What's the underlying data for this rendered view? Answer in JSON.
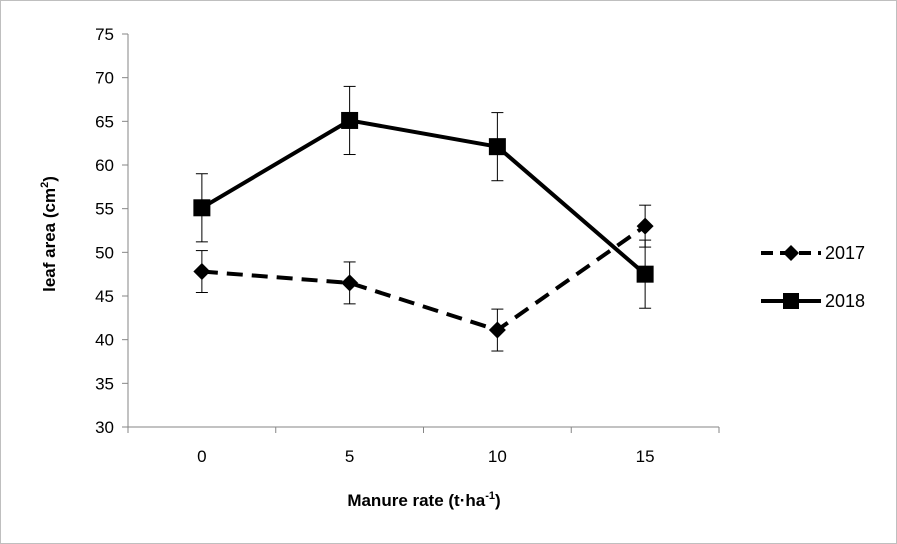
{
  "chart_data": {
    "type": "line",
    "title": "",
    "xlabel": "Manure rate (t·ha",
    "xlabel_sup": "-1",
    "xlabel_end": ")",
    "ylabel": "leaf area (cm",
    "ylabel_sup": "2",
    "ylabel_end": ")",
    "categories": [
      "0",
      "5",
      "10",
      "15"
    ],
    "ylim": [
      30,
      75
    ],
    "yticks": [
      30,
      35,
      40,
      45,
      50,
      55,
      60,
      65,
      70,
      75
    ],
    "grid": false,
    "legend_position": "right",
    "series": [
      {
        "name": "2017",
        "values": [
          47.8,
          46.5,
          41.1,
          53.0
        ],
        "error": [
          2.4,
          2.4,
          2.4,
          2.4
        ],
        "line_style": "dashed",
        "marker": "diamond",
        "color": "#000000"
      },
      {
        "name": "2018",
        "values": [
          55.1,
          65.1,
          62.1,
          47.5
        ],
        "error": [
          3.9,
          3.9,
          3.9,
          3.9
        ],
        "line_style": "solid",
        "marker": "square",
        "color": "#000000"
      }
    ]
  }
}
